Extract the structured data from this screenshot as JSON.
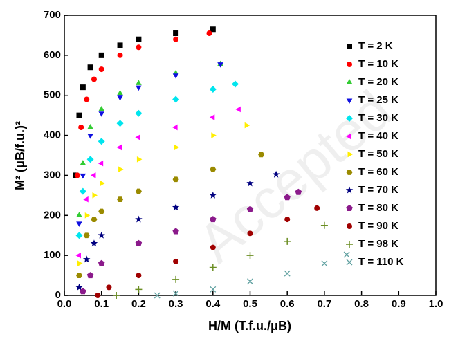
{
  "chart_data": {
    "type": "scatter",
    "xlabel": "H/M (T.f.u./μB)",
    "ylabel": "M² (μB/f.u.)²",
    "watermark": "Accepted",
    "xlim": [
      0,
      1.0
    ],
    "ylim": [
      0,
      700
    ],
    "xticks": [
      {
        "value": 0,
        "label": "0.0"
      },
      0.1,
      0.2,
      0.3,
      0.4,
      0.5,
      0.6,
      0.7,
      0.8,
      0.9,
      {
        "value": 1,
        "label": "1.0"
      }
    ],
    "yticks": [
      0,
      100,
      200,
      300,
      400,
      500,
      600,
      700
    ],
    "legend": "upper right",
    "series": [
      {
        "name": "T = 2 K",
        "color": "#000000",
        "marker": "square",
        "x": [
          0.03,
          0.04,
          0.05,
          0.07,
          0.1,
          0.15,
          0.2,
          0.3,
          0.4
        ],
        "values": [
          300,
          450,
          520,
          570,
          600,
          625,
          640,
          655,
          665
        ]
      },
      {
        "name": "T = 10 K",
        "color": "#ff0000",
        "marker": "circle",
        "x": [
          0.035,
          0.045,
          0.06,
          0.08,
          0.1,
          0.15,
          0.2,
          0.3,
          0.39
        ],
        "values": [
          300,
          420,
          490,
          540,
          565,
          600,
          620,
          640,
          655
        ]
      },
      {
        "name": "T = 20 K",
        "color": "#33cc33",
        "marker": "triangle-up",
        "x": [
          0.04,
          0.05,
          0.07,
          0.1,
          0.15,
          0.2,
          0.3,
          0.42
        ],
        "values": [
          200,
          330,
          420,
          465,
          505,
          530,
          555,
          578
        ]
      },
      {
        "name": "T = 25 K",
        "color": "#1010e0",
        "marker": "triangle-down",
        "x": [
          0.04,
          0.05,
          0.07,
          0.1,
          0.15,
          0.2,
          0.3,
          0.42
        ],
        "values": [
          180,
          300,
          400,
          455,
          495,
          520,
          550,
          578
        ]
      },
      {
        "name": "T = 30 K",
        "color": "#00e5ee",
        "marker": "diamond",
        "x": [
          0.04,
          0.05,
          0.07,
          0.1,
          0.15,
          0.2,
          0.3,
          0.4,
          0.46
        ],
        "values": [
          150,
          260,
          340,
          385,
          430,
          455,
          490,
          515,
          528
        ]
      },
      {
        "name": "T = 40 K",
        "color": "#ff00ff",
        "marker": "triangle-left",
        "x": [
          0.04,
          0.06,
          0.08,
          0.1,
          0.15,
          0.2,
          0.3,
          0.4,
          0.47
        ],
        "values": [
          100,
          240,
          300,
          330,
          370,
          395,
          420,
          445,
          465
        ]
      },
      {
        "name": "T = 50 K",
        "color": "#ffee00",
        "marker": "triangle-right",
        "x": [
          0.04,
          0.06,
          0.08,
          0.1,
          0.15,
          0.2,
          0.3,
          0.4,
          0.49
        ],
        "values": [
          80,
          200,
          250,
          280,
          315,
          340,
          370,
          400,
          425
        ]
      },
      {
        "name": "T = 60 K",
        "color": "#9a8a00",
        "marker": "hexagon",
        "x": [
          0.04,
          0.06,
          0.08,
          0.1,
          0.15,
          0.2,
          0.3,
          0.4,
          0.53
        ],
        "values": [
          50,
          150,
          190,
          210,
          240,
          260,
          290,
          315,
          352
        ]
      },
      {
        "name": "T = 70 K",
        "color": "#000080",
        "marker": "star",
        "x": [
          0.04,
          0.06,
          0.08,
          0.1,
          0.2,
          0.3,
          0.4,
          0.5,
          0.57
        ],
        "values": [
          20,
          90,
          130,
          150,
          190,
          220,
          250,
          280,
          302
        ]
      },
      {
        "name": "T = 80 K",
        "color": "#8b1a8b",
        "marker": "pentagon",
        "x": [
          0.05,
          0.07,
          0.1,
          0.2,
          0.3,
          0.4,
          0.5,
          0.6,
          0.63
        ],
        "values": [
          10,
          50,
          80,
          130,
          160,
          190,
          215,
          245,
          258
        ]
      },
      {
        "name": "T = 90 K",
        "color": "#a00000",
        "marker": "circle",
        "x": [
          0.09,
          0.12,
          0.2,
          0.3,
          0.4,
          0.5,
          0.6,
          0.68
        ],
        "values": [
          0,
          20,
          50,
          85,
          120,
          155,
          190,
          218
        ]
      },
      {
        "name": "T = 98 K",
        "color": "#6b8e23",
        "marker": "plus",
        "x": [
          0.14,
          0.2,
          0.3,
          0.4,
          0.5,
          0.6,
          0.7
        ],
        "values": [
          0,
          15,
          40,
          70,
          100,
          135,
          175
        ]
      },
      {
        "name": "T = 110 K",
        "color": "#5fa0a0",
        "marker": "cross",
        "x": [
          0.25,
          0.3,
          0.4,
          0.5,
          0.6,
          0.7,
          0.76
        ],
        "values": [
          0,
          5,
          15,
          35,
          55,
          80,
          102
        ]
      }
    ]
  }
}
